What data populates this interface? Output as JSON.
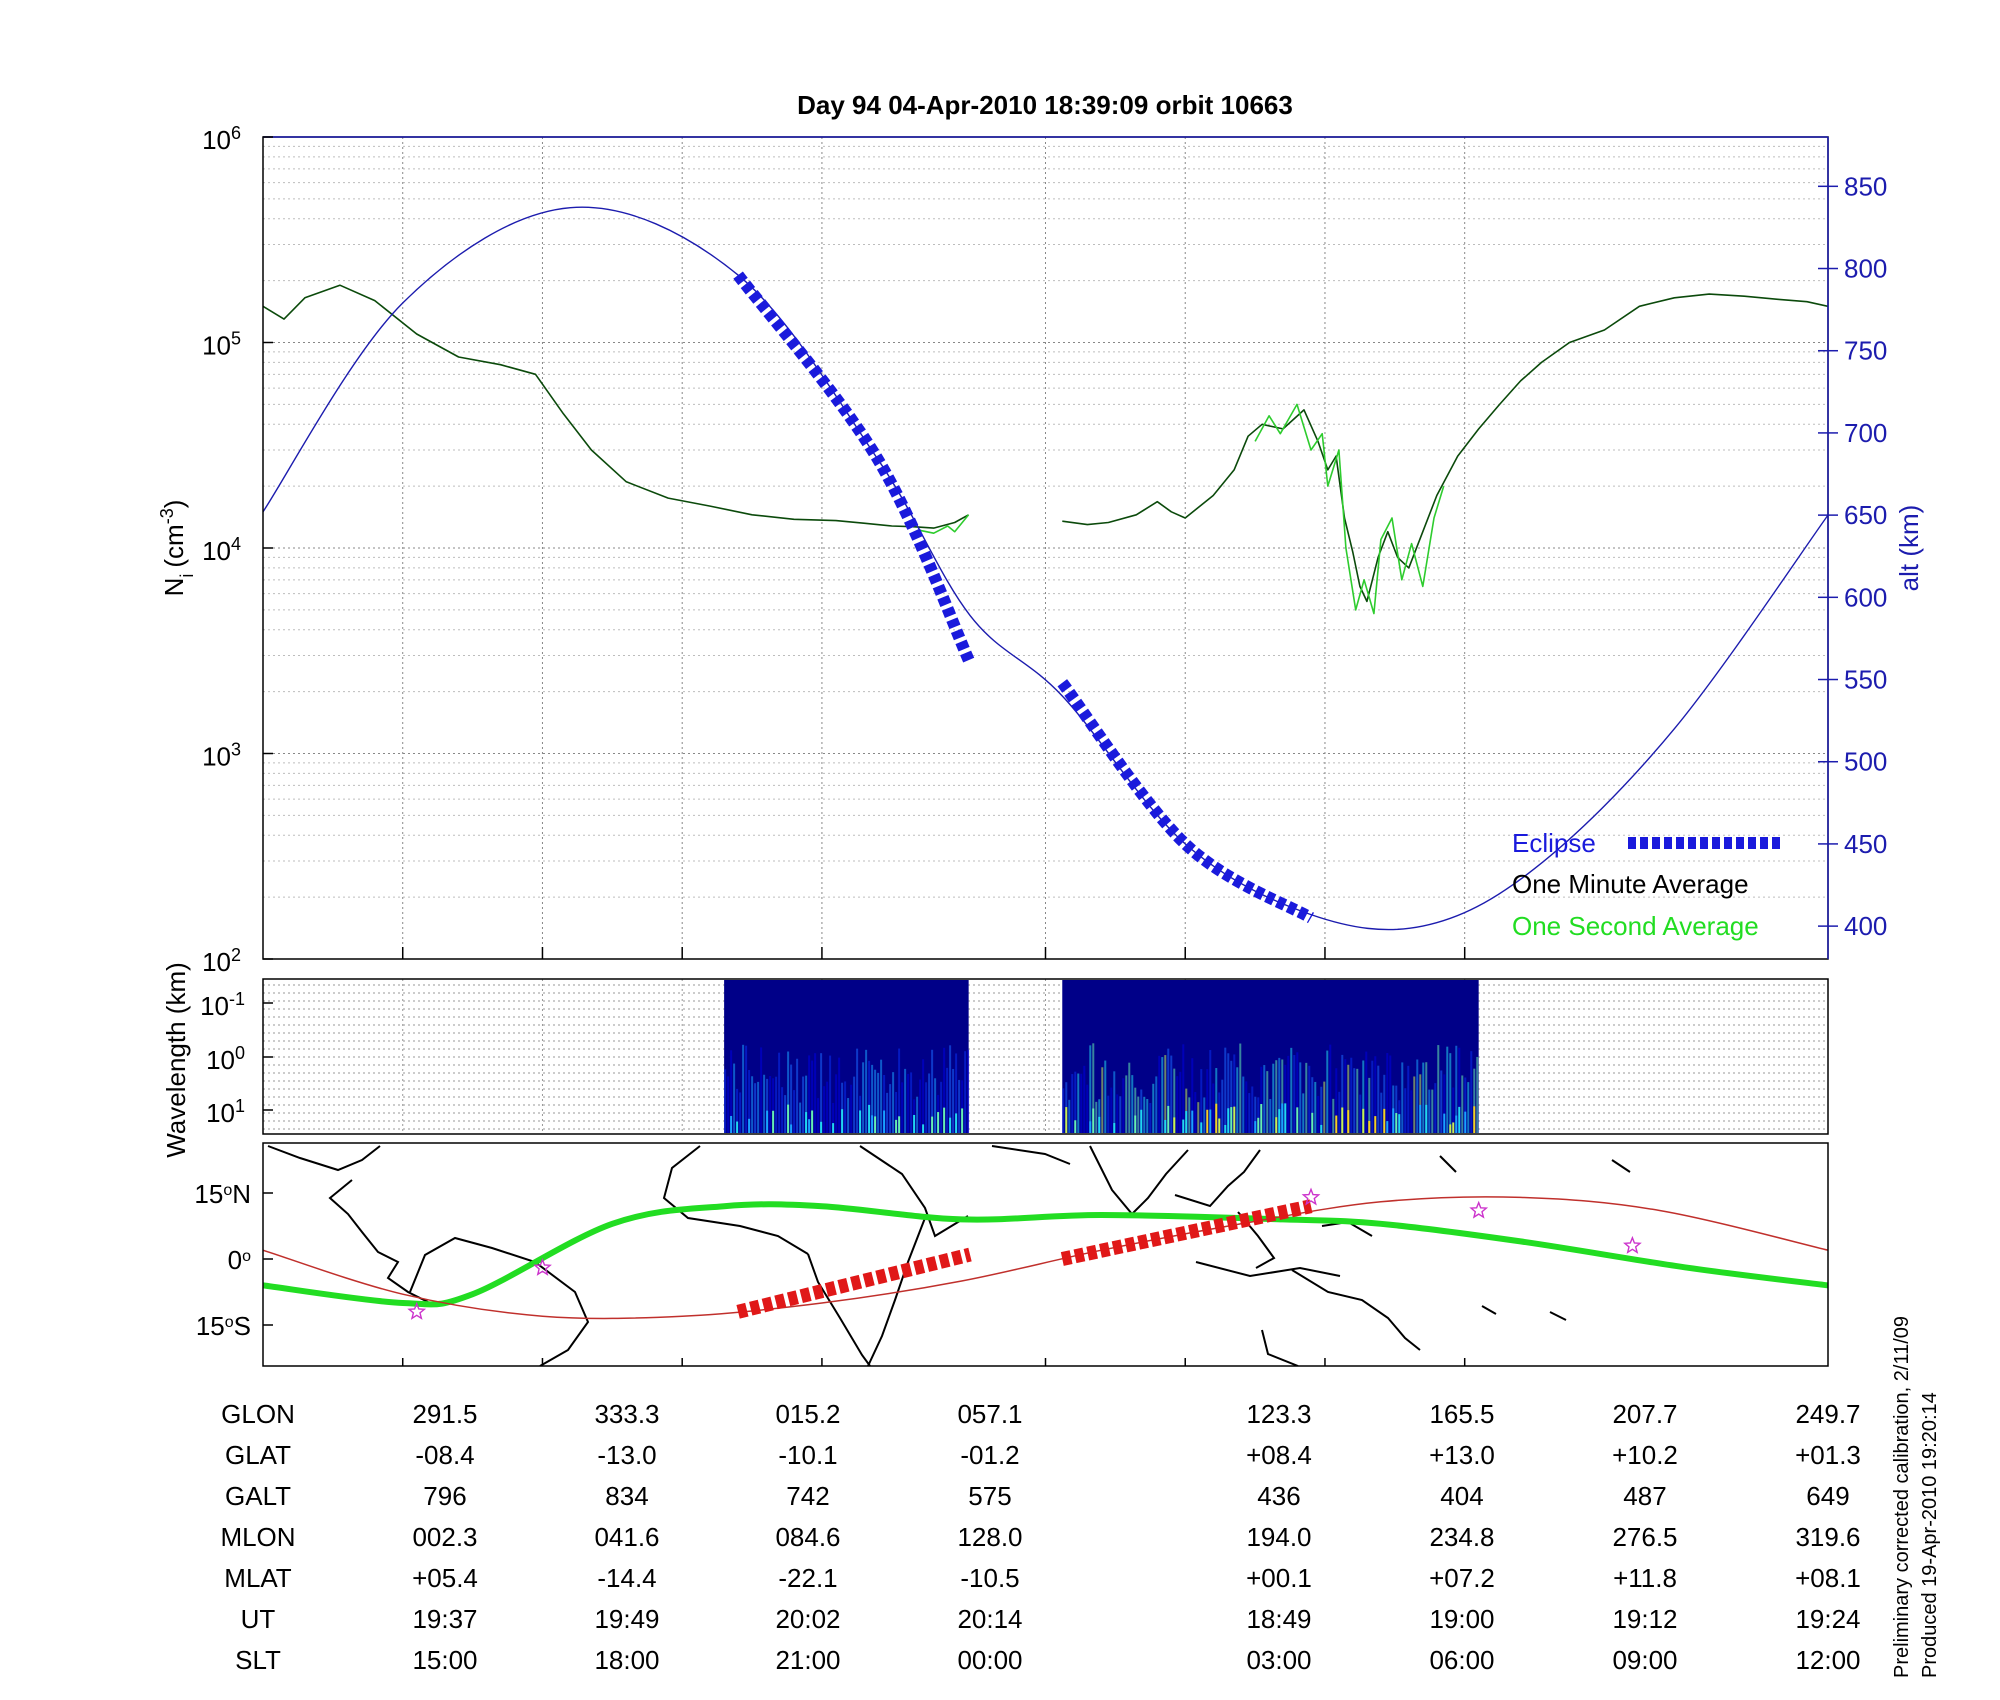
{
  "title": "Day 94  04-Apr-2010 18:39:09   orbit 10663",
  "footer": {
    "line1": "Preliminary corrected calibration, 2/11/09",
    "line2": "Produced 19-Apr-2010 19:20:14"
  },
  "chart_data": [
    {
      "id": "density",
      "type": "line",
      "ylabel_left": "N",
      "ylabel_left_sub": "i",
      "ylabel_left_unit": "(cm",
      "ylabel_left_exp": "-3",
      "ylabel_left_close": ")",
      "ylabel_right": "alt (km)",
      "y_scale": "log",
      "ylim": [
        100,
        1000000
      ],
      "y_ticks": [
        {
          "base": "10",
          "exp": "2",
          "value": 100
        },
        {
          "base": "10",
          "exp": "3",
          "value": 1000
        },
        {
          "base": "10",
          "exp": "4",
          "value": 10000
        },
        {
          "base": "10",
          "exp": "5",
          "value": 100000
        },
        {
          "base": "10",
          "exp": "6",
          "value": 1000000
        }
      ],
      "y2lim": [
        380,
        880
      ],
      "y2_ticks": [
        "400",
        "450",
        "500",
        "550",
        "600",
        "650",
        "700",
        "750",
        "800",
        "850"
      ],
      "grid": true,
      "legend_position": "bottom-right",
      "legend": [
        {
          "label": "Eclipse",
          "color": "#1a1adc",
          "style": "thick-dotted"
        },
        {
          "label": "One Minute Average",
          "color": "#000000",
          "style": "line"
        },
        {
          "label": "One Second Average",
          "color": "#22dd22",
          "style": "line"
        }
      ],
      "series": [
        {
          "name": "One Minute Average",
          "color": "#0b4a0b",
          "segments": [
            [
              [
                0,
                150000
              ],
              [
                0.15,
                130000
              ],
              [
                0.3,
                165000
              ],
              [
                0.55,
                190000
              ],
              [
                0.8,
                160000
              ],
              [
                1.1,
                110000
              ],
              [
                1.4,
                85000
              ],
              [
                1.7,
                78000
              ],
              [
                1.95,
                70000
              ],
              [
                2.15,
                45000
              ],
              [
                2.35,
                30000
              ],
              [
                2.6,
                21000
              ],
              [
                2.9,
                17500
              ],
              [
                3.2,
                16000
              ],
              [
                3.5,
                14500
              ],
              [
                3.8,
                13800
              ],
              [
                4.1,
                13600
              ],
              [
                4.3,
                13200
              ],
              [
                4.5,
                12800
              ],
              [
                4.65,
                12700
              ],
              [
                4.8,
                12500
              ],
              [
                4.95,
                13300
              ],
              [
                5.05,
                14500
              ]
            ],
            [
              [
                5.72,
                13500
              ],
              [
                5.9,
                13000
              ],
              [
                6.05,
                13300
              ],
              [
                6.25,
                14500
              ],
              [
                6.4,
                16800
              ],
              [
                6.5,
                15000
              ],
              [
                6.6,
                14000
              ],
              [
                6.8,
                18000
              ],
              [
                6.95,
                24000
              ],
              [
                7.05,
                35000
              ],
              [
                7.15,
                40000
              ],
              [
                7.3,
                38000
              ],
              [
                7.45,
                47000
              ],
              [
                7.55,
                33000
              ],
              [
                7.62,
                24000
              ],
              [
                7.68,
                28000
              ],
              [
                7.74,
                14000
              ],
              [
                7.8,
                9500
              ],
              [
                7.85,
                6500
              ],
              [
                7.9,
                5500
              ],
              [
                7.98,
                9000
              ],
              [
                8.05,
                12000
              ],
              [
                8.12,
                9000
              ],
              [
                8.2,
                8000
              ],
              [
                8.3,
                12000
              ],
              [
                8.4,
                18000
              ],
              [
                8.55,
                28000
              ],
              [
                8.7,
                38000
              ],
              [
                8.85,
                50000
              ],
              [
                9.0,
                65000
              ],
              [
                9.15,
                80000
              ],
              [
                9.35,
                100000
              ],
              [
                9.6,
                115000
              ],
              [
                9.85,
                150000
              ],
              [
                10.1,
                165000
              ],
              [
                10.35,
                172000
              ],
              [
                10.6,
                168000
              ],
              [
                10.85,
                162000
              ],
              [
                11.05,
                158000
              ],
              [
                11.2,
                150000
              ]
            ]
          ]
        },
        {
          "name": "One Second Average",
          "color": "#2ecc2e",
          "segments": [
            [
              [
                4.7,
                12200
              ],
              [
                4.8,
                11800
              ],
              [
                4.9,
                12800
              ],
              [
                4.95,
                12000
              ],
              [
                5.05,
                14500
              ]
            ],
            [
              [
                7.1,
                33000
              ],
              [
                7.2,
                44000
              ],
              [
                7.28,
                36000
              ],
              [
                7.4,
                50000
              ],
              [
                7.5,
                30000
              ],
              [
                7.58,
                36000
              ],
              [
                7.62,
                20000
              ],
              [
                7.7,
                30000
              ],
              [
                7.75,
                10000
              ],
              [
                7.82,
                5000
              ],
              [
                7.88,
                7000
              ],
              [
                7.95,
                4800
              ],
              [
                8.0,
                11000
              ],
              [
                8.08,
                14000
              ],
              [
                8.15,
                7000
              ],
              [
                8.22,
                10500
              ],
              [
                8.3,
                6500
              ],
              [
                8.38,
                14000
              ],
              [
                8.45,
                20000
              ]
            ]
          ]
        },
        {
          "name": "alt",
          "color": "#1c1cae",
          "axis": "right",
          "segments": [
            [
              [
                0,
                652
              ],
              [
                1.0,
                779
              ],
              [
                2.2,
                837
              ],
              [
                3.4,
                796
              ],
              [
                4.4,
                684
              ],
              [
                5.06,
                589
              ],
              [
                5.72,
                540
              ],
              [
                6.6,
                450
              ],
              [
                7.5,
                407
              ],
              [
                8.3,
                400
              ],
              [
                9.1,
                435
              ],
              [
                10.1,
                520
              ],
              [
                11.2,
                650
              ]
            ]
          ]
        },
        {
          "name": "Eclipse",
          "color": "#1a1adc",
          "axis": "right",
          "style": "thick-dotted",
          "segments": [
            [
              [
                3.4,
                796
              ],
              [
                4.4,
                684
              ],
              [
                5.06,
                560
              ]
            ],
            [
              [
                5.72,
                548
              ],
              [
                6.6,
                450
              ],
              [
                7.5,
                405
              ]
            ]
          ]
        }
      ]
    },
    {
      "id": "spectrogram",
      "type": "heatmap",
      "ylabel": "Wavelength (km)",
      "y_scale": "log",
      "y_ticks": [
        {
          "base": "10",
          "exp": "-1"
        },
        {
          "base": "10",
          "exp": "0"
        },
        {
          "base": "10",
          "exp": "1"
        }
      ],
      "data_blocks": [
        [
          3.3,
          5.05
        ],
        [
          5.72,
          8.7
        ]
      ],
      "colormap": "jet"
    },
    {
      "id": "map",
      "type": "line",
      "y_ticks": [
        {
          "deg": "15",
          "hemi": "N"
        },
        {
          "deg": "0",
          "hemi": ""
        },
        {
          "deg": "15",
          "hemi": "S"
        }
      ],
      "series": [
        {
          "name": "orbit track",
          "color": "#22dd22",
          "points": [
            [
              0,
              -6
            ],
            [
              1.0,
              -10
            ],
            [
              1.5,
              -8
            ],
            [
              2.5,
              8
            ],
            [
              3.3,
              12
            ],
            [
              4.0,
              12
            ],
            [
              5.0,
              9
            ],
            [
              6.0,
              10
            ],
            [
              7.3,
              9
            ],
            [
              8.0,
              8
            ],
            [
              9.0,
              4
            ],
            [
              10.2,
              -2
            ],
            [
              11.2,
              -6
            ]
          ]
        },
        {
          "name": "magnetic equator",
          "color": "#c0302c",
          "points": [
            [
              0,
              2
            ],
            [
              1.0,
              -8
            ],
            [
              2.0,
              -13
            ],
            [
              3.0,
              -13
            ],
            [
              4.0,
              -10
            ],
            [
              5.0,
              -5
            ],
            [
              6.0,
              2
            ],
            [
              7.0,
              8
            ],
            [
              8.0,
              13
            ],
            [
              9.0,
              14
            ],
            [
              10.0,
              11
            ],
            [
              11.2,
              2
            ]
          ]
        },
        {
          "name": "Eclipse",
          "color": "#e01818",
          "style": "thick-dotted",
          "segments": [
            [
              [
                3.4,
                -12
              ],
              [
                5.06,
                1
              ]
            ],
            [
              [
                5.72,
                0
              ],
              [
                7.5,
                12
              ]
            ]
          ]
        }
      ],
      "stars": [
        [
          1.1,
          -12
        ],
        [
          2.0,
          -2
        ],
        [
          7.5,
          14
        ],
        [
          8.7,
          11
        ],
        [
          9.8,
          3
        ]
      ]
    }
  ],
  "table": {
    "row_labels": [
      "GLON",
      "GLAT",
      "GALT",
      "MLON",
      "MLAT",
      "UT",
      "SLT"
    ],
    "columns": [
      {
        "x": 1,
        "values": [
          "291.5",
          "-08.4",
          "796",
          "002.3",
          "+05.4",
          "19:37",
          "15:00"
        ]
      },
      {
        "x": 2,
        "values": [
          "333.3",
          "-13.0",
          "834",
          "041.6",
          "-14.4",
          "19:49",
          "18:00"
        ]
      },
      {
        "x": 3,
        "values": [
          "015.2",
          "-10.1",
          "742",
          "084.6",
          "-22.1",
          "20:02",
          "21:00"
        ]
      },
      {
        "x": 4,
        "values": [
          "057.1",
          "-01.2",
          "575",
          "128.0",
          "-10.5",
          "20:14",
          "00:00"
        ]
      },
      {
        "x": 5.6,
        "values": [
          "123.3",
          "+08.4",
          "436",
          "194.0",
          "+00.1",
          "18:49",
          "03:00"
        ]
      },
      {
        "x": 6.6,
        "values": [
          "165.5",
          "+13.0",
          "404",
          "234.8",
          "+07.2",
          "19:00",
          "06:00"
        ]
      },
      {
        "x": 7.6,
        "values": [
          "207.7",
          "+10.2",
          "487",
          "276.5",
          "+11.8",
          "19:12",
          "09:00"
        ]
      },
      {
        "x": 8.6,
        "values": [
          "249.7",
          "+01.3",
          "649",
          "319.6",
          "+08.1",
          "19:24",
          "12:00"
        ]
      }
    ]
  }
}
